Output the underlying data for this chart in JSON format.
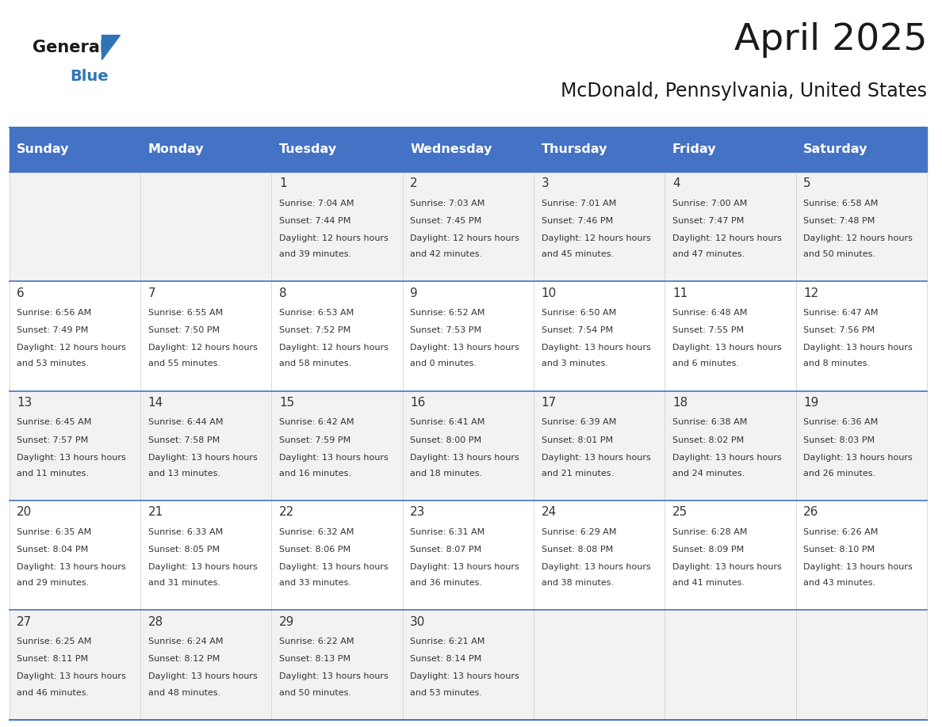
{
  "title": "April 2025",
  "subtitle": "McDonald, Pennsylvania, United States",
  "days_of_week": [
    "Sunday",
    "Monday",
    "Tuesday",
    "Wednesday",
    "Thursday",
    "Friday",
    "Saturday"
  ],
  "header_bg": "#4472C4",
  "header_text": "#FFFFFF",
  "row_bg_odd": "#F2F2F2",
  "row_bg_even": "#FFFFFF",
  "cell_border": "#4472C4",
  "text_color": "#333333",
  "title_color": "#1a1a1a",
  "logo_general_color": "#1a1a1a",
  "logo_blue_color": "#2E75B6",
  "calendar_data": [
    [
      null,
      null,
      {
        "day": 1,
        "sunrise": "7:04 AM",
        "sunset": "7:44 PM",
        "daylight": "12 hours and 39 minutes."
      },
      {
        "day": 2,
        "sunrise": "7:03 AM",
        "sunset": "7:45 PM",
        "daylight": "12 hours and 42 minutes."
      },
      {
        "day": 3,
        "sunrise": "7:01 AM",
        "sunset": "7:46 PM",
        "daylight": "12 hours and 45 minutes."
      },
      {
        "day": 4,
        "sunrise": "7:00 AM",
        "sunset": "7:47 PM",
        "daylight": "12 hours and 47 minutes."
      },
      {
        "day": 5,
        "sunrise": "6:58 AM",
        "sunset": "7:48 PM",
        "daylight": "12 hours and 50 minutes."
      }
    ],
    [
      {
        "day": 6,
        "sunrise": "6:56 AM",
        "sunset": "7:49 PM",
        "daylight": "12 hours and 53 minutes."
      },
      {
        "day": 7,
        "sunrise": "6:55 AM",
        "sunset": "7:50 PM",
        "daylight": "12 hours and 55 minutes."
      },
      {
        "day": 8,
        "sunrise": "6:53 AM",
        "sunset": "7:52 PM",
        "daylight": "12 hours and 58 minutes."
      },
      {
        "day": 9,
        "sunrise": "6:52 AM",
        "sunset": "7:53 PM",
        "daylight": "13 hours and 0 minutes."
      },
      {
        "day": 10,
        "sunrise": "6:50 AM",
        "sunset": "7:54 PM",
        "daylight": "13 hours and 3 minutes."
      },
      {
        "day": 11,
        "sunrise": "6:48 AM",
        "sunset": "7:55 PM",
        "daylight": "13 hours and 6 minutes."
      },
      {
        "day": 12,
        "sunrise": "6:47 AM",
        "sunset": "7:56 PM",
        "daylight": "13 hours and 8 minutes."
      }
    ],
    [
      {
        "day": 13,
        "sunrise": "6:45 AM",
        "sunset": "7:57 PM",
        "daylight": "13 hours and 11 minutes."
      },
      {
        "day": 14,
        "sunrise": "6:44 AM",
        "sunset": "7:58 PM",
        "daylight": "13 hours and 13 minutes."
      },
      {
        "day": 15,
        "sunrise": "6:42 AM",
        "sunset": "7:59 PM",
        "daylight": "13 hours and 16 minutes."
      },
      {
        "day": 16,
        "sunrise": "6:41 AM",
        "sunset": "8:00 PM",
        "daylight": "13 hours and 18 minutes."
      },
      {
        "day": 17,
        "sunrise": "6:39 AM",
        "sunset": "8:01 PM",
        "daylight": "13 hours and 21 minutes."
      },
      {
        "day": 18,
        "sunrise": "6:38 AM",
        "sunset": "8:02 PM",
        "daylight": "13 hours and 24 minutes."
      },
      {
        "day": 19,
        "sunrise": "6:36 AM",
        "sunset": "8:03 PM",
        "daylight": "13 hours and 26 minutes."
      }
    ],
    [
      {
        "day": 20,
        "sunrise": "6:35 AM",
        "sunset": "8:04 PM",
        "daylight": "13 hours and 29 minutes."
      },
      {
        "day": 21,
        "sunrise": "6:33 AM",
        "sunset": "8:05 PM",
        "daylight": "13 hours and 31 minutes."
      },
      {
        "day": 22,
        "sunrise": "6:32 AM",
        "sunset": "8:06 PM",
        "daylight": "13 hours and 33 minutes."
      },
      {
        "day": 23,
        "sunrise": "6:31 AM",
        "sunset": "8:07 PM",
        "daylight": "13 hours and 36 minutes."
      },
      {
        "day": 24,
        "sunrise": "6:29 AM",
        "sunset": "8:08 PM",
        "daylight": "13 hours and 38 minutes."
      },
      {
        "day": 25,
        "sunrise": "6:28 AM",
        "sunset": "8:09 PM",
        "daylight": "13 hours and 41 minutes."
      },
      {
        "day": 26,
        "sunrise": "6:26 AM",
        "sunset": "8:10 PM",
        "daylight": "13 hours and 43 minutes."
      }
    ],
    [
      {
        "day": 27,
        "sunrise": "6:25 AM",
        "sunset": "8:11 PM",
        "daylight": "13 hours and 46 minutes."
      },
      {
        "day": 28,
        "sunrise": "6:24 AM",
        "sunset": "8:12 PM",
        "daylight": "13 hours and 48 minutes."
      },
      {
        "day": 29,
        "sunrise": "6:22 AM",
        "sunset": "8:13 PM",
        "daylight": "13 hours and 50 minutes."
      },
      {
        "day": 30,
        "sunrise": "6:21 AM",
        "sunset": "8:14 PM",
        "daylight": "13 hours and 53 minutes."
      },
      null,
      null,
      null
    ]
  ]
}
